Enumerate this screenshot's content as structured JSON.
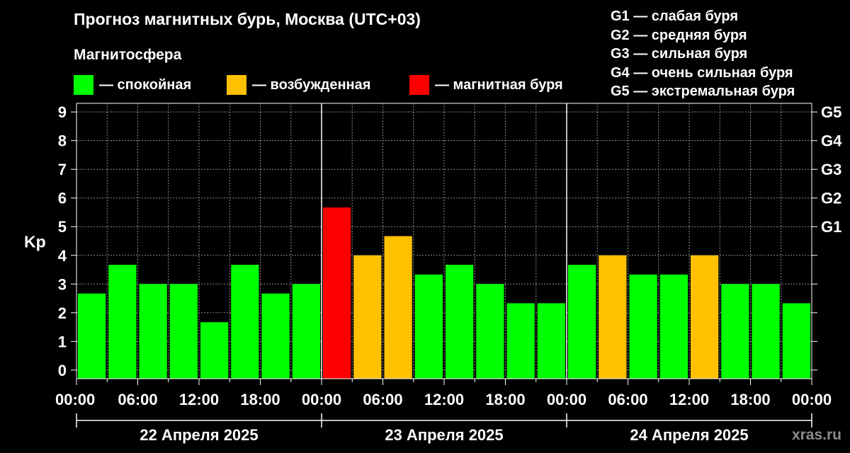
{
  "title": "Прогноз магнитных бурь, Москва (UTC+03)",
  "legend": {
    "title": "Магнитосфера",
    "items": [
      {
        "label": "— спокойная",
        "color": "#00ff00"
      },
      {
        "label": "— возбужденная",
        "color": "#ffc000"
      },
      {
        "label": "— магнитная буря",
        "color": "#ff0000"
      }
    ]
  },
  "g_scale": [
    "G1 — слабая буря",
    "G2 — средняя буря",
    "G3 — сильная буря",
    "G4 — очень сильная буря",
    "G5 — экстремальная буря"
  ],
  "watermark": "xras.ru",
  "chart_data": {
    "type": "bar",
    "ylabel": "Kp",
    "ylim": [
      -0.3,
      9.3
    ],
    "y_ticks": [
      0,
      1,
      2,
      3,
      4,
      5,
      6,
      7,
      8,
      9
    ],
    "right_ticks": [
      {
        "value": 5,
        "label": "G1"
      },
      {
        "value": 6,
        "label": "G2"
      },
      {
        "value": 7,
        "label": "G3"
      },
      {
        "value": 8,
        "label": "G4"
      },
      {
        "value": 9,
        "label": "G5"
      }
    ],
    "x_tick_labels": [
      "00:00",
      "06:00",
      "12:00",
      "18:00",
      "00:00",
      "06:00",
      "12:00",
      "18:00",
      "00:00",
      "06:00",
      "12:00",
      "18:00",
      "00:00"
    ],
    "days": [
      "22 Апреля 2025",
      "23 Апреля 2025",
      "24 Апреля 2025"
    ],
    "categories": [
      "22 Апреля 2025 00:00",
      "22 Апреля 2025 03:00",
      "22 Апреля 2025 06:00",
      "22 Апреля 2025 09:00",
      "22 Апреля 2025 12:00",
      "22 Апреля 2025 15:00",
      "22 Апреля 2025 18:00",
      "22 Апреля 2025 21:00",
      "23 Апреля 2025 00:00",
      "23 Апреля 2025 03:00",
      "23 Апреля 2025 06:00",
      "23 Апреля 2025 09:00",
      "23 Апреля 2025 12:00",
      "23 Апреля 2025 15:00",
      "23 Апреля 2025 18:00",
      "23 Апреля 2025 21:00",
      "24 Апреля 2025 00:00",
      "24 Апреля 2025 03:00",
      "24 Апреля 2025 06:00",
      "24 Апреля 2025 09:00",
      "24 Апреля 2025 12:00",
      "24 Апреля 2025 15:00",
      "24 Апреля 2025 18:00",
      "24 Апреля 2025 21:00"
    ],
    "values": [
      2.67,
      3.67,
      3.0,
      3.0,
      1.67,
      3.67,
      2.67,
      3.0,
      5.67,
      4.0,
      4.67,
      3.33,
      3.67,
      3.0,
      2.33,
      2.33,
      3.67,
      4.0,
      3.33,
      3.33,
      4.0,
      3.0,
      3.0,
      2.33
    ],
    "bar_colors": [
      "#00ff00",
      "#00ff00",
      "#00ff00",
      "#00ff00",
      "#00ff00",
      "#00ff00",
      "#00ff00",
      "#00ff00",
      "#ff0000",
      "#ffc000",
      "#ffc000",
      "#00ff00",
      "#00ff00",
      "#00ff00",
      "#00ff00",
      "#00ff00",
      "#00ff00",
      "#ffc000",
      "#00ff00",
      "#00ff00",
      "#ffc000",
      "#00ff00",
      "#00ff00",
      "#00ff00"
    ],
    "grid": true,
    "grid_color": "#8c8c8c"
  }
}
